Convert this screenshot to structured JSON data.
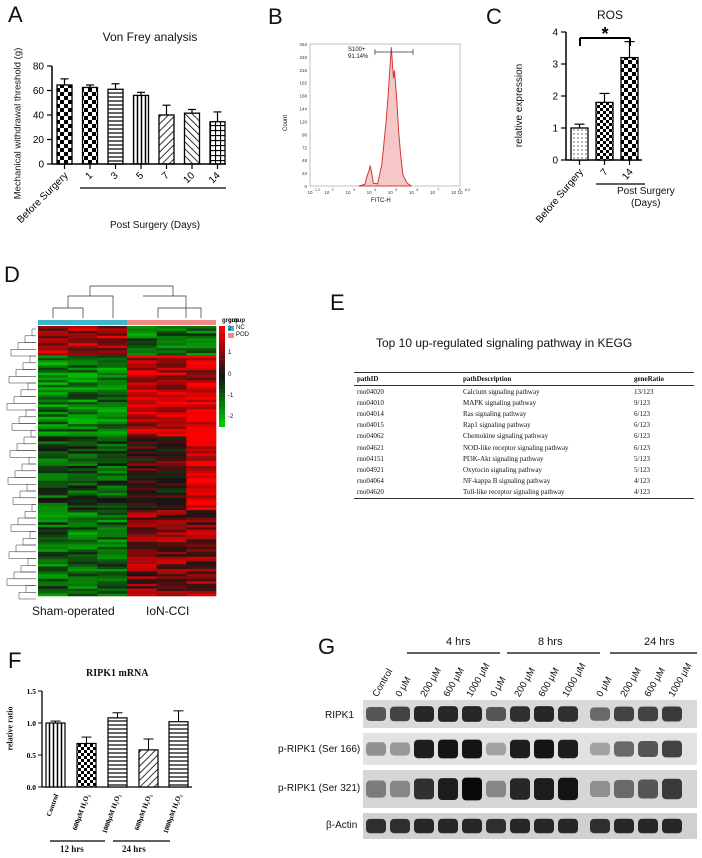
{
  "panels": {
    "A": {
      "letter": "A",
      "title": "Von Frey analysis",
      "ylabel": "Mechanical withdrawal  threshold (g)",
      "xgroup_label": "Post Surgery (Days)"
    },
    "B": {
      "letter": "B",
      "gate_label": "S100+",
      "gate_percent": "91.14%",
      "xlabel": "FITC-H",
      "ylabel": "Count",
      "yticks": [
        "0",
        "24",
        "48",
        "72",
        "96",
        "120",
        "144",
        "168",
        "192",
        "216",
        "240",
        "264"
      ],
      "xticks": [
        "10",
        "10",
        "10",
        "10",
        "10",
        "10",
        "10",
        "10",
        "10"
      ],
      "xtick_exp": [
        "1.2",
        "2",
        "3",
        "4",
        "5",
        "6",
        "7",
        "8",
        "8.3"
      ]
    },
    "C": {
      "letter": "C",
      "title": "ROS",
      "ylabel": "relative expression",
      "significance": "*",
      "xgroup_label": "Post Surgery",
      "xgroup_sub": "(Days)"
    },
    "D": {
      "letter": "D",
      "legend_title": "group",
      "legend_items": [
        "NC",
        "POD"
      ],
      "legend_colors": [
        "#3fb5c7",
        "#ef8a84"
      ],
      "scale_ticks": [
        "2",
        "1",
        "0",
        "-1",
        "-2"
      ],
      "col_labels": [
        "Sham-operated",
        "IoN-CCI"
      ]
    },
    "E": {
      "letter": "E",
      "title": "Top 10 up-regulated signaling pathway in KEGG",
      "headers": [
        "pathID",
        "pathDescription",
        "geneRatio"
      ],
      "rows": [
        [
          "rno04020",
          "Calcium signaling pathway",
          "13/123"
        ],
        [
          "rno04010",
          "MAPK signaling pathway",
          "9/123"
        ],
        [
          "rno04014",
          "Ras signaling pathway",
          "6/123"
        ],
        [
          "rno04015",
          "Rap1 signaling pathway",
          "6/123"
        ],
        [
          "rno04062",
          "Chemokine signaling pathway",
          "6/123"
        ],
        [
          "rno04621",
          "NOD-like receptor signaling pathway",
          "6/123"
        ],
        [
          "rno04151",
          "PI3K-Akt signaling pathway",
          "5/123"
        ],
        [
          "rno04921",
          "Oxytocin signaling pathway",
          "5/123"
        ],
        [
          "rno04064",
          "NF-kappa B signaling pathway",
          "4/123"
        ],
        [
          "rno04620",
          "Toll-like receptor signaling pathway",
          "4/123"
        ]
      ]
    },
    "F": {
      "letter": "F",
      "title": "RIPK1 mRNA",
      "ylabel": "relative ratio",
      "group_labels": [
        "12 hrs",
        "24 hrs"
      ]
    },
    "G": {
      "letter": "G",
      "time_groups": [
        "4 hrs",
        "8 hrs",
        "24 hrs"
      ],
      "lanes": [
        "Control",
        "0 μM",
        "200 μM",
        "600 μM",
        "1000 μM",
        "0 μM",
        "200 μM",
        "600 μM",
        "1000 μM",
        "0 μM",
        "200 μM",
        "600 μM",
        "1000 μM"
      ],
      "rows": [
        "RIPK1",
        "p-RIPK1 (Ser 166)",
        "p-RIPK1 (Ser 321)",
        "β-Actin"
      ]
    }
  },
  "chart_data": [
    {
      "type": "bar",
      "panel": "A",
      "title": "Von Frey analysis",
      "xlabel": "Post Surgery (Days)",
      "ylabel": "Mechanical withdrawal  threshold (g)",
      "categories": [
        "Before Surgery",
        "1",
        "3",
        "5",
        "7",
        "10",
        "14"
      ],
      "values": [
        64.5,
        62.5,
        61,
        56,
        40,
        41.5,
        34.5
      ],
      "errors": [
        5,
        2,
        4.5,
        2.5,
        8,
        3,
        8
      ],
      "ylim": [
        0,
        80
      ],
      "yticks": [
        "0",
        "20",
        "40",
        "60",
        "80"
      ]
    },
    {
      "type": "area",
      "panel": "B",
      "xlabel": "FITC-H",
      "ylabel": "Count",
      "x": [
        3.5,
        3.8,
        3.9,
        4.0,
        4.05,
        4.1,
        4.2,
        4.4,
        4.6,
        4.8,
        4.9,
        5.0,
        5.05,
        5.1,
        5.15,
        5.2,
        5.3,
        5.4,
        5.5,
        5.6,
        5.8,
        6.0
      ],
      "values": [
        0,
        3,
        18,
        30,
        38,
        28,
        5,
        4,
        40,
        120,
        170,
        230,
        258,
        228,
        200,
        215,
        165,
        100,
        55,
        20,
        5,
        0
      ],
      "ylim": [
        0,
        264
      ]
    },
    {
      "type": "bar",
      "panel": "C",
      "title": "ROS",
      "ylabel": "relative expression",
      "categories": [
        "Before Surgery",
        "7",
        "14"
      ],
      "values": [
        1.0,
        1.8,
        3.2
      ],
      "errors": [
        0.12,
        0.28,
        0.5
      ],
      "ylim": [
        0,
        4
      ],
      "yticks": [
        "0",
        "1",
        "2",
        "3",
        "4"
      ]
    },
    {
      "type": "bar",
      "panel": "F",
      "title": "RIPK1 mRNA",
      "ylabel": "relative ratio",
      "categories": [
        "Control",
        "600μM H₂O₂",
        "1000μM H₂O₂",
        "600μM H₂O₂",
        "1000μM H₂O₂"
      ],
      "values": [
        1.0,
        0.68,
        1.08,
        0.58,
        1.02
      ],
      "errors": [
        0.03,
        0.1,
        0.08,
        0.17,
        0.17
      ],
      "ylim": [
        0,
        1.5
      ],
      "yticks": [
        "0.0",
        "0.5",
        "1.0",
        "1.5"
      ]
    }
  ]
}
